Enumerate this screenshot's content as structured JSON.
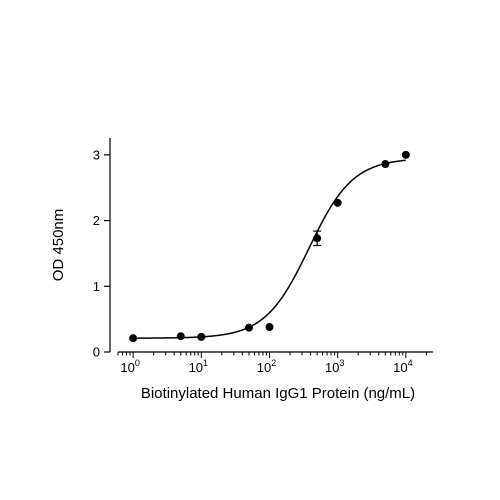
{
  "chart_data": {
    "type": "scatter",
    "xlabel": "Biotinylated Human IgG1 Protein (ng/mL)",
    "ylabel": "OD 450nm",
    "x_scale": "log",
    "xlim": [
      0.6,
      25000
    ],
    "ylim": [
      0,
      3.15
    ],
    "x_ticks": [
      {
        "value": 1,
        "base": "10",
        "exp": "0"
      },
      {
        "value": 10,
        "base": "10",
        "exp": "1"
      },
      {
        "value": 100,
        "base": "10",
        "exp": "2"
      },
      {
        "value": 1000,
        "base": "10",
        "exp": "3"
      },
      {
        "value": 10000,
        "base": "10",
        "exp": "4"
      }
    ],
    "y_ticks": [
      {
        "value": 0,
        "label": "0"
      },
      {
        "value": 1,
        "label": "1"
      },
      {
        "value": 2,
        "label": "2"
      },
      {
        "value": 3,
        "label": "3"
      }
    ],
    "series": [
      {
        "points": [
          {
            "x": 1,
            "y": 0.21
          },
          {
            "x": 5,
            "y": 0.24
          },
          {
            "x": 10,
            "y": 0.23
          },
          {
            "x": 50,
            "y": 0.37
          },
          {
            "x": 100,
            "y": 0.38
          },
          {
            "x": 500,
            "y": 1.73,
            "err": 0.11
          },
          {
            "x": 1000,
            "y": 2.27
          },
          {
            "x": 5000,
            "y": 2.86
          },
          {
            "x": 10000,
            "y": 3.0
          }
        ],
        "fit": {
          "model": "4PL",
          "bottom": 0.21,
          "top": 2.95,
          "ec50": 380,
          "hill": 1.35
        }
      }
    ],
    "grid": false,
    "legend": "none",
    "color": "#000000"
  }
}
